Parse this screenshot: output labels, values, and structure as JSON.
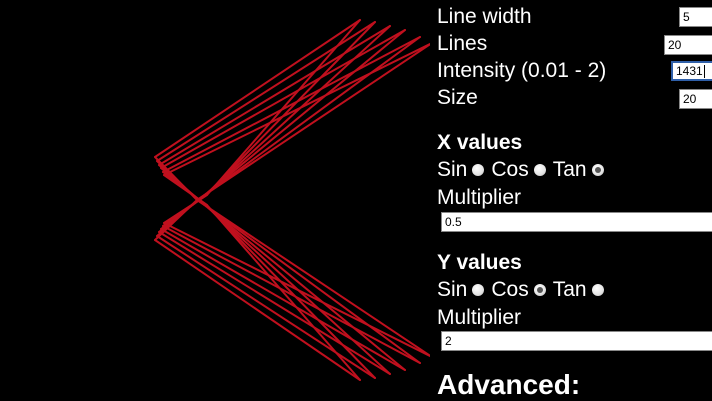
{
  "controls": {
    "line_width_label": "Line width",
    "line_width_value": "5",
    "lines_label": "Lines",
    "lines_value": "20",
    "intensity_label": "Intensity (0.01 - 2)",
    "intensity_value": "1431",
    "size_label": "Size",
    "size_value": "20"
  },
  "x_values": {
    "heading": "X values",
    "options": [
      "Sin",
      "Cos",
      "Tan"
    ],
    "selected": "Tan",
    "multiplier_label": "Multiplier",
    "multiplier_value": "0.5"
  },
  "y_values": {
    "heading": "Y values",
    "options": [
      "Sin",
      "Cos",
      "Tan"
    ],
    "selected": "Cos",
    "multiplier_label": "Multiplier",
    "multiplier_value": "2"
  },
  "advanced_heading": "Advanced:",
  "colors": {
    "background": "#000000",
    "line": "#c0101e",
    "text": "#ffffff"
  }
}
